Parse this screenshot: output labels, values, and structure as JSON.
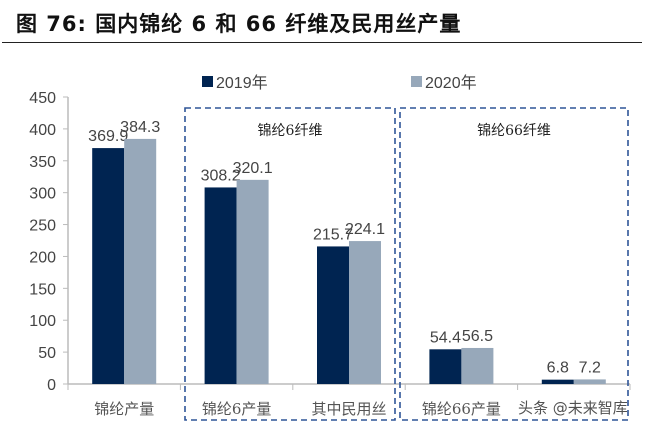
{
  "title": "图 76:  国内锦纶 6 和 66 纤维及民用丝产量",
  "watermark": "头条 @未来智库",
  "chart_data": {
    "type": "bar",
    "categories": [
      "锦纶产量",
      "锦纶6产量",
      "其中民用丝",
      "锦纶66产量",
      ""
    ],
    "series": [
      {
        "name": "2019年",
        "values": [
          369.9,
          308.2,
          215.7,
          54.4,
          6.8
        ],
        "color": "#002451"
      },
      {
        "name": "2020年",
        "values": [
          384.3,
          320.1,
          224.1,
          56.5,
          7.2
        ],
        "color": "#97A8BA"
      }
    ],
    "ylim": [
      0,
      450
    ],
    "yticks": [
      0,
      50,
      100,
      150,
      200,
      250,
      300,
      350,
      400,
      450
    ],
    "groups": [
      {
        "label": "锦纶6纤维",
        "categories": [
          1,
          2
        ]
      },
      {
        "label": "锦纶66纤维",
        "categories": [
          3,
          4
        ]
      }
    ],
    "legend": "top",
    "grid": false,
    "xlabel": "",
    "ylabel": ""
  }
}
